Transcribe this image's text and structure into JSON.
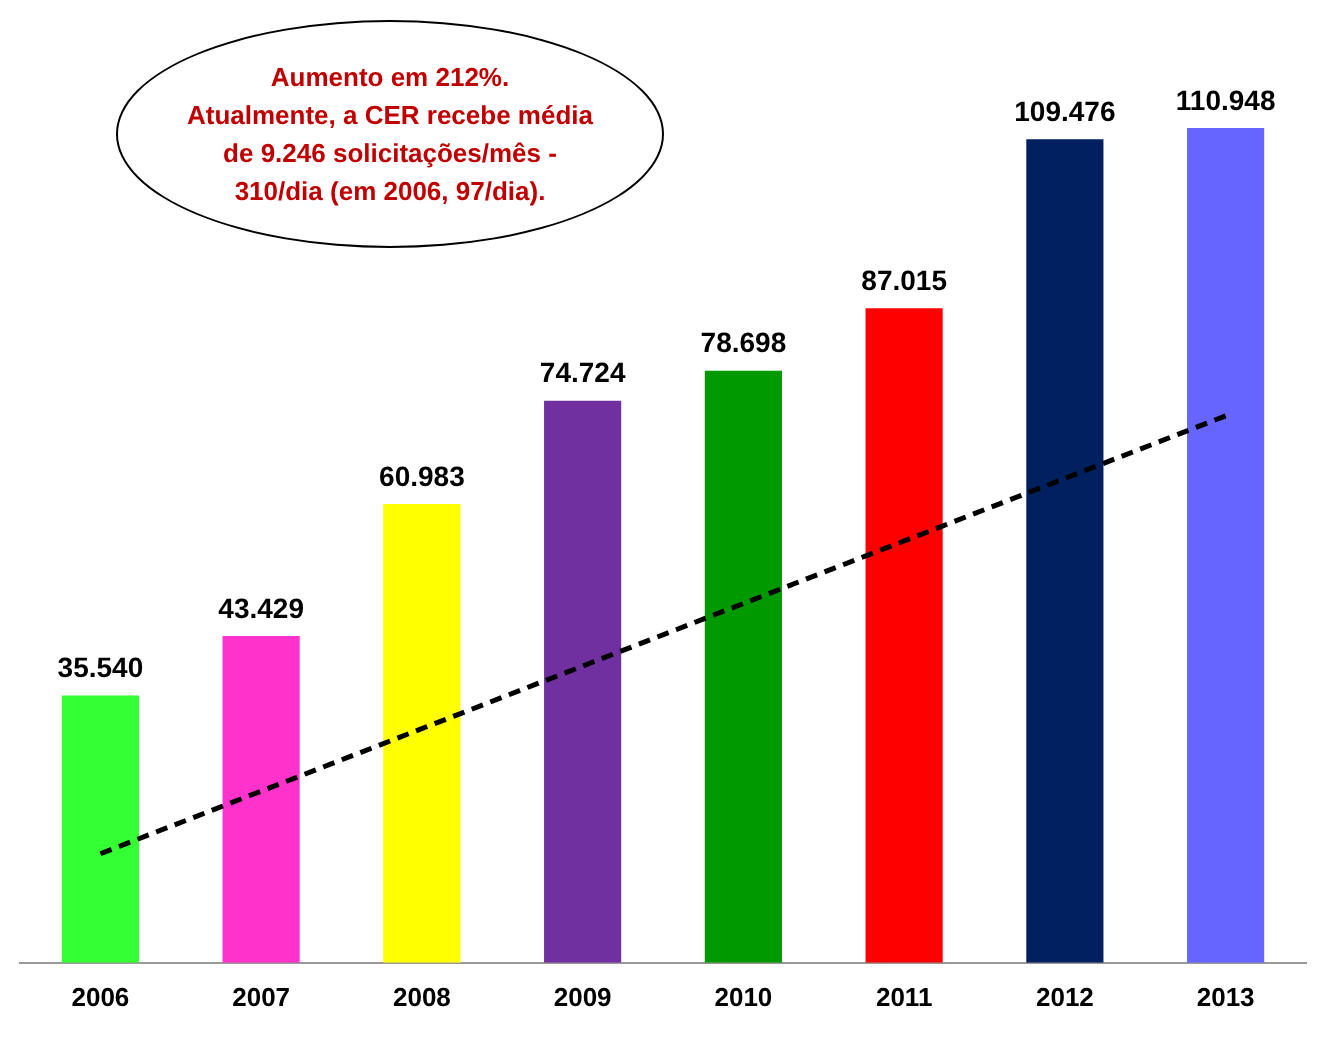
{
  "chart_data": {
    "type": "bar",
    "categories": [
      "2006",
      "2007",
      "2008",
      "2009",
      "2010",
      "2011",
      "2012",
      "2013"
    ],
    "series": [
      {
        "colors": [
          "#33ff33",
          "#ff33cc",
          "#ffff00",
          "#7030a0",
          "#009900",
          "#ff0000",
          "#002060",
          "#6666ff"
        ],
        "values": [
          35540,
          43429,
          60983,
          74724,
          78698,
          87015,
          109476,
          110948
        ],
        "value_labels": [
          "35.540",
          "43.429",
          "60.983",
          "74.724",
          "78.698",
          "87.015",
          "109.476",
          "110.948"
        ]
      },
      {
        "type": "line",
        "values": [
          14500,
          null,
          null,
          null,
          null,
          null,
          null,
          72700
        ],
        "color": "#000000",
        "line_style": "dashed",
        "marker": "none"
      }
    ],
    "annotations": [
      "Aumento em 212%.\nAtualmente, a CER recebe média\nde 9.246 solicitações/mês  -\n310/dia (em 2006, 97/dia)."
    ],
    "grid": false,
    "legend": false,
    "tick_labels": "x"
  }
}
